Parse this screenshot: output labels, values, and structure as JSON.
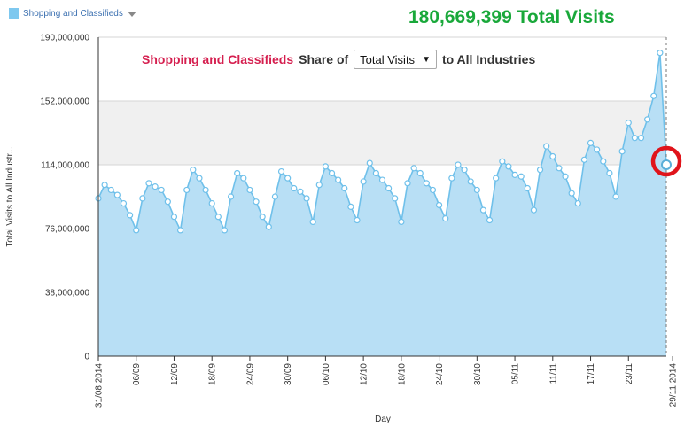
{
  "legend": {
    "label": "Shopping and Classifieds"
  },
  "headline": "180,669,399 Total Visits",
  "share": {
    "industry": "Shopping and Classifieds",
    "share_of": "Share of",
    "metric": "Total Visits",
    "dropdown_arrow": "▼",
    "suffix": "to All Industries"
  },
  "colors": {
    "area": "#b8dff5",
    "line": "#6fc0ea",
    "band": "#f0f0f0",
    "highlight": "#e0141b",
    "headline": "#19a83a",
    "industry": "#d51f4f"
  },
  "chart_data": {
    "type": "area",
    "title": "",
    "xlabel": "Day",
    "ylabel": "Total Visits to All Industr...",
    "ylim": [
      0,
      190000000
    ],
    "yticks": [
      "0",
      "38,000,000",
      "76,000,000",
      "114,000,000",
      "152,000,000",
      "190,000,000"
    ],
    "ytick_values": [
      0,
      38000000,
      76000000,
      114000000,
      152000000,
      190000000
    ],
    "xticks": [
      "31/08 2014",
      "06/09",
      "12/09",
      "18/09",
      "24/09",
      "30/09",
      "06/10",
      "12/10",
      "18/10",
      "24/10",
      "30/10",
      "05/11",
      "11/11",
      "17/11",
      "23/11",
      "29/11 2014"
    ],
    "xtick_index": [
      0,
      6,
      12,
      18,
      24,
      30,
      36,
      42,
      48,
      54,
      60,
      66,
      72,
      78,
      84,
      91
    ],
    "band": [
      114000000,
      152000000
    ],
    "highlight_index": 90,
    "series": [
      {
        "name": "Shopping and Classifieds",
        "values": [
          94000000,
          102000000,
          99000000,
          96000000,
          91000000,
          84000000,
          75000000,
          94000000,
          103000000,
          101000000,
          99000000,
          92000000,
          83000000,
          75000000,
          99000000,
          111000000,
          106000000,
          99000000,
          91000000,
          83000000,
          75000000,
          95000000,
          109000000,
          106000000,
          99000000,
          92000000,
          83000000,
          77000000,
          95000000,
          110000000,
          106000000,
          100000000,
          98000000,
          94000000,
          80000000,
          102000000,
          113000000,
          109000000,
          105000000,
          100000000,
          89000000,
          81000000,
          104000000,
          115000000,
          109000000,
          105000000,
          100000000,
          94000000,
          80000000,
          103000000,
          112000000,
          109000000,
          103000000,
          99000000,
          90000000,
          82000000,
          106000000,
          114000000,
          111000000,
          104000000,
          99000000,
          87000000,
          81000000,
          106000000,
          116000000,
          113000000,
          108000000,
          107000000,
          100000000,
          87000000,
          111000000,
          125000000,
          119000000,
          112000000,
          107000000,
          97000000,
          91000000,
          117000000,
          127000000,
          123000000,
          116000000,
          109000000,
          95000000,
          122000000,
          139000000,
          130000000,
          130000000,
          141000000,
          155000000,
          180669399,
          114000000
        ]
      }
    ]
  }
}
